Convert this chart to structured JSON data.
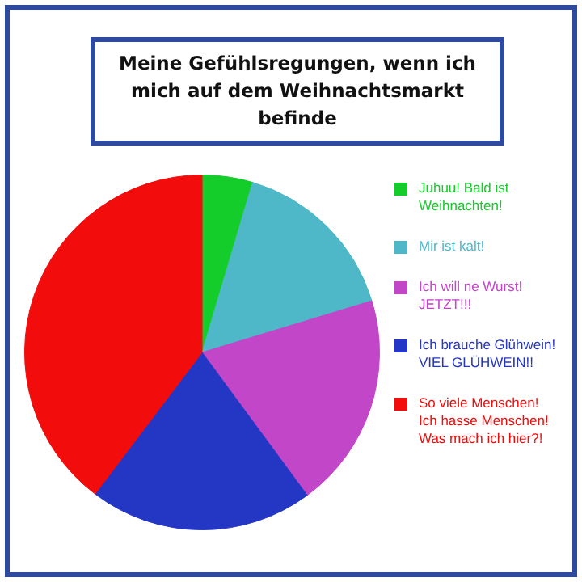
{
  "chart_data": {
    "type": "pie",
    "title": "Meine Gefühlsregungen, wenn ich mich auf dem Weihnachtsmarkt befinde",
    "categories": [
      "Juhuu! Bald ist Weihnachten!",
      "Mir ist kalt!",
      "Ich will ne Wurst! JETZT!!!",
      "Ich brauche Glühwein! VIEL GLÜHWEIN!!",
      "So viele Menschen! Ich hasse Menschen! Was mach ich hier?!"
    ],
    "values": [
      4.6,
      15.7,
      19.6,
      20.4,
      39.7
    ],
    "colors": [
      "#14cc2a",
      "#4fb8c8",
      "#c246c8",
      "#2436c4",
      "#f20c0c"
    ],
    "legend": "right"
  }
}
